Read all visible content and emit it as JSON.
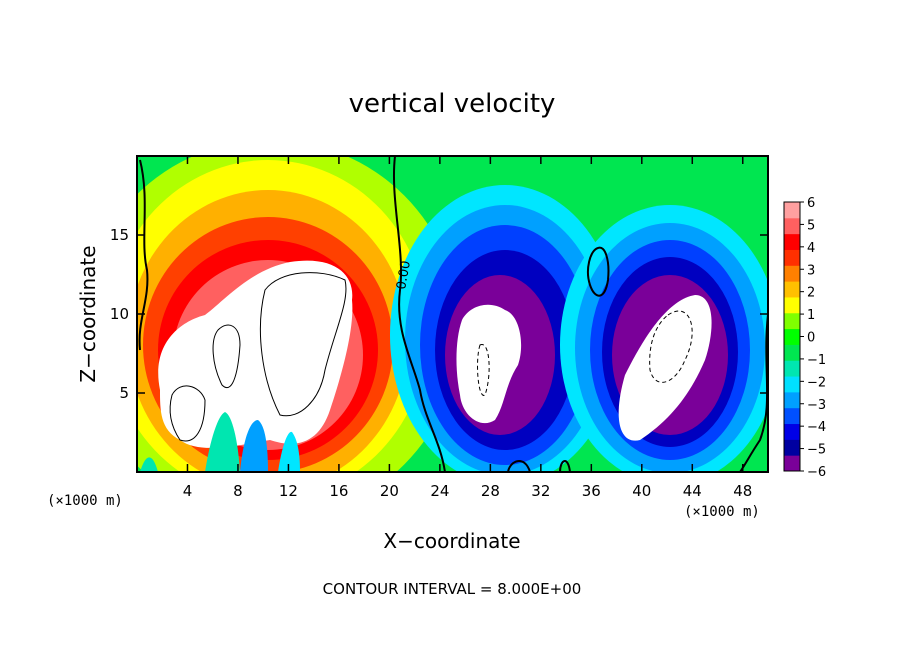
{
  "chart_data": {
    "type": "heatmap",
    "title": "vertical velocity",
    "xlabel": "X−coordinate",
    "ylabel": "Z−coordinate",
    "x_unit": "(×1000 m)",
    "y_unit": "(×1000 m)",
    "xlim": [
      0,
      50
    ],
    "ylim": [
      0,
      20
    ],
    "x_ticks": [
      4,
      8,
      12,
      16,
      20,
      24,
      28,
      32,
      36,
      40,
      44,
      48
    ],
    "y_ticks": [
      5,
      10,
      15
    ],
    "colorbar": {
      "levels": [
        "6",
        "5",
        "4",
        "3",
        "2",
        "1",
        "0",
        "−1",
        "−2",
        "−3",
        "−4",
        "−5",
        "−6"
      ],
      "min": -6,
      "max": 6,
      "colors": [
        "#7a0099",
        "#0000a0",
        "#0000e6",
        "#0050ff",
        "#00a0ff",
        "#00e0ff",
        "#00e6b0",
        "#00e650",
        "#00ff00",
        "#80ff00",
        "#ffff00",
        "#ffc000",
        "#ff8000",
        "#ff3000",
        "#ff0000",
        "#ff6060",
        "#ffa0a0"
      ]
    },
    "contour_label": "0.00",
    "features": [
      {
        "kind": "updraft",
        "x_range": [
          2,
          19
        ],
        "z_range": [
          1,
          15
        ],
        "peak": 6,
        "saturated_above_max": true
      },
      {
        "kind": "downdraft",
        "x_range": [
          24,
          35
        ],
        "z_range": [
          1,
          15
        ],
        "peak": -6,
        "saturated_below_min": true
      },
      {
        "kind": "downdraft",
        "x_range": [
          37,
          48
        ],
        "z_range": [
          1,
          12
        ],
        "peak": -6,
        "saturated_below_min": true
      }
    ],
    "footer": "CONTOUR INTERVAL = 8.000E+00"
  }
}
